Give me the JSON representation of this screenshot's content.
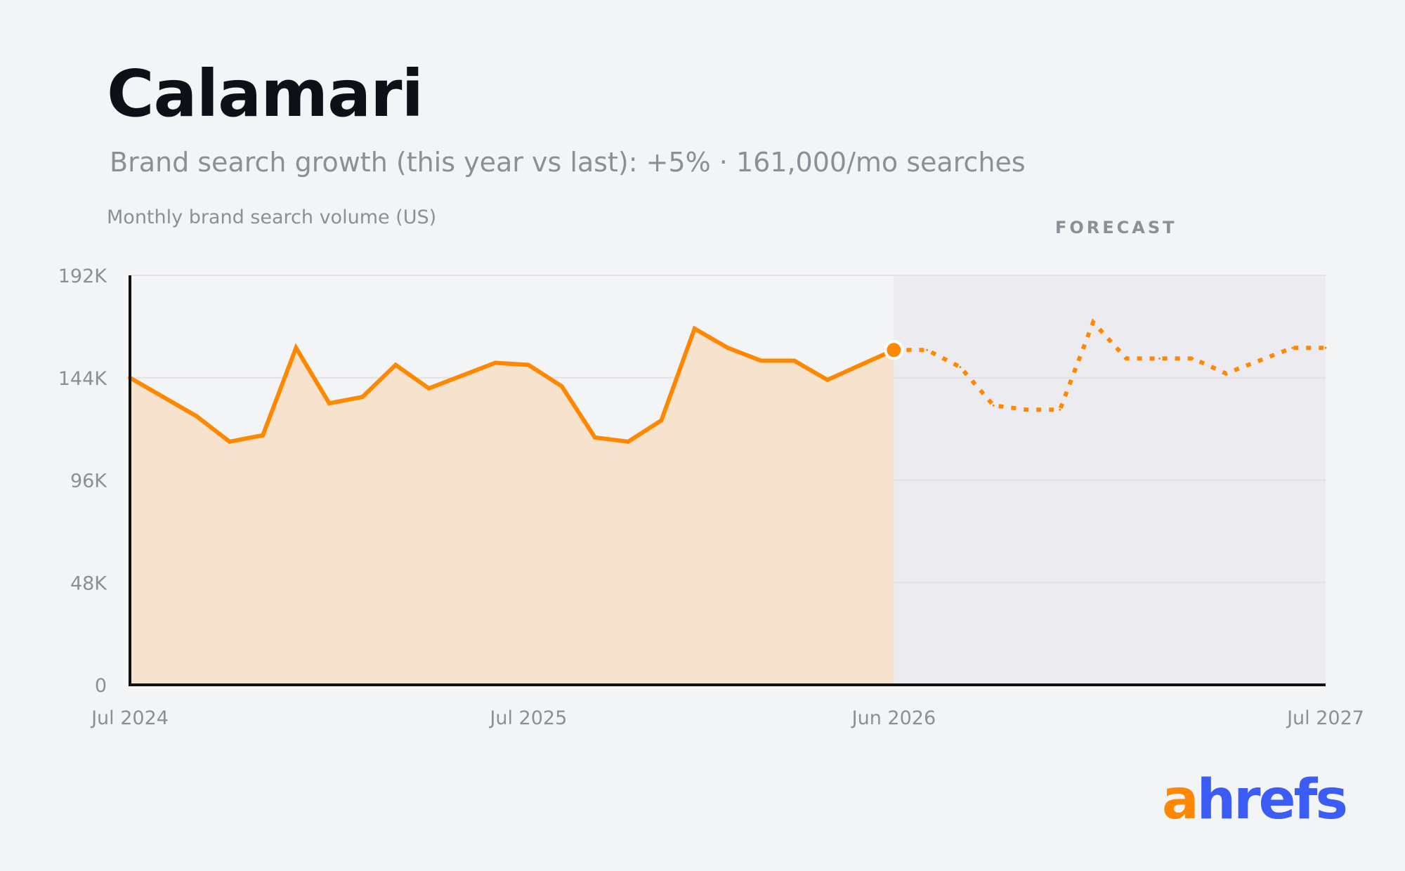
{
  "title": "Calamari",
  "subtitle": "Brand search growth (this year vs last): +5% · 161,000/mo searches",
  "forecast_label": "FORECAST",
  "logo": {
    "a": "a",
    "rest": "hrefs"
  },
  "colors": {
    "line": "#ff8800",
    "area": "#f6e2cd",
    "forecast_bg": "#ececf0",
    "grid": "#e2e2e6",
    "axis": "#111111"
  },
  "chart_data": {
    "type": "line",
    "ylabel": "Monthly brand search volume (US)",
    "ylim": [
      0,
      192000
    ],
    "y_ticks": [
      {
        "value": 0,
        "label": "0"
      },
      {
        "value": 48000,
        "label": "48K"
      },
      {
        "value": 96000,
        "label": "96K"
      },
      {
        "value": 144000,
        "label": "144K"
      },
      {
        "value": 192000,
        "label": "192K"
      }
    ],
    "x_range": [
      "2024-07",
      "2027-07"
    ],
    "x_ticks": [
      {
        "x": "2024-07",
        "label": "Jul 2024"
      },
      {
        "x": "2025-07",
        "label": "Jul 2025"
      },
      {
        "x": "2026-06",
        "label": "Jun 2026"
      },
      {
        "x": "2027-07",
        "label": "Jul 2027"
      }
    ],
    "forecast_start": "2026-06",
    "series": [
      {
        "style": "solid-area",
        "points": [
          {
            "x": "2024-07",
            "y": 144000
          },
          {
            "x": "2024-08",
            "y": 135000
          },
          {
            "x": "2024-09",
            "y": 126000
          },
          {
            "x": "2024-10",
            "y": 114000
          },
          {
            "x": "2024-11",
            "y": 117000
          },
          {
            "x": "2024-12",
            "y": 158000
          },
          {
            "x": "2025-01",
            "y": 132000
          },
          {
            "x": "2025-02",
            "y": 135000
          },
          {
            "x": "2025-03",
            "y": 150000
          },
          {
            "x": "2025-04",
            "y": 139000
          },
          {
            "x": "2025-05",
            "y": 145000
          },
          {
            "x": "2025-06",
            "y": 151000
          },
          {
            "x": "2025-07",
            "y": 150000
          },
          {
            "x": "2025-08",
            "y": 140000
          },
          {
            "x": "2025-09",
            "y": 116000
          },
          {
            "x": "2025-10",
            "y": 114000
          },
          {
            "x": "2025-11",
            "y": 124000
          },
          {
            "x": "2025-12",
            "y": 167000
          },
          {
            "x": "2026-01",
            "y": 158000
          },
          {
            "x": "2026-02",
            "y": 152000
          },
          {
            "x": "2026-03",
            "y": 152000
          },
          {
            "x": "2026-04",
            "y": 143000
          },
          {
            "x": "2026-05",
            "y": 150000
          },
          {
            "x": "2026-06",
            "y": 157000
          }
        ]
      },
      {
        "style": "dotted-forecast",
        "points": [
          {
            "x": "2026-06",
            "y": 157000
          },
          {
            "x": "2026-07",
            "y": 157000
          },
          {
            "x": "2026-08",
            "y": 149000
          },
          {
            "x": "2026-09",
            "y": 131000
          },
          {
            "x": "2026-10",
            "y": 129000
          },
          {
            "x": "2026-11",
            "y": 129000
          },
          {
            "x": "2026-12",
            "y": 170000
          },
          {
            "x": "2027-01",
            "y": 153000
          },
          {
            "x": "2027-02",
            "y": 153000
          },
          {
            "x": "2027-03",
            "y": 153000
          },
          {
            "x": "2027-04",
            "y": 146000
          },
          {
            "x": "2027-05",
            "y": 152000
          },
          {
            "x": "2027-06",
            "y": 158000
          },
          {
            "x": "2027-07",
            "y": 158000
          }
        ]
      }
    ]
  }
}
